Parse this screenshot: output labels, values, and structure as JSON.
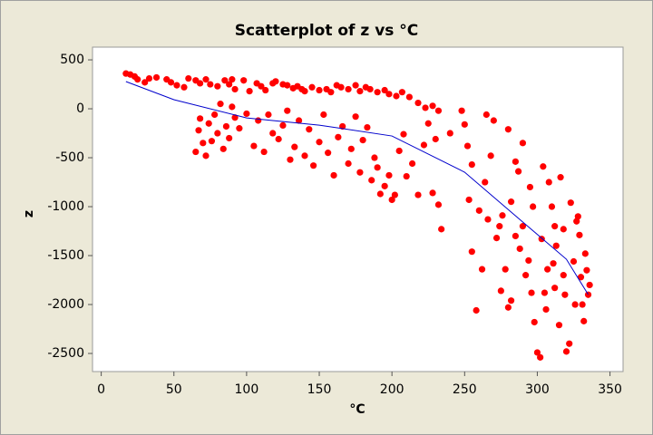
{
  "chart_data": {
    "type": "scatter",
    "title": "Scatterplot of z vs °C",
    "x_label": "°C",
    "y_label": "z",
    "xlim": [
      -6,
      359
    ],
    "ylim": [
      -2685,
      630
    ],
    "xticks": [
      0,
      50,
      100,
      150,
      200,
      250,
      300,
      350
    ],
    "yticks": [
      500,
      0,
      -500,
      -1000,
      -1500,
      -2000,
      -2500
    ],
    "grid": false,
    "series": [
      {
        "color": "#ff0000",
        "x": [
          17,
          20,
          23,
          25,
          30,
          33,
          38,
          45,
          48,
          52,
          57,
          60,
          65,
          68,
          72,
          75,
          80,
          85,
          88,
          90,
          92,
          98,
          102,
          107,
          110,
          113,
          118,
          120,
          125,
          128,
          132,
          135,
          138,
          140,
          145,
          150,
          155,
          158,
          162,
          165,
          170,
          175,
          178,
          182,
          185,
          190,
          195,
          198,
          203,
          207,
          212,
          218,
          223,
          228,
          232,
          65,
          67,
          68,
          70,
          72,
          74,
          76,
          78,
          80,
          82,
          84,
          86,
          88,
          90,
          92,
          95,
          100,
          105,
          108,
          112,
          115,
          118,
          122,
          125,
          128,
          130,
          133,
          136,
          140,
          143,
          146,
          150,
          153,
          156,
          160,
          163,
          166,
          170,
          172,
          175,
          178,
          180,
          183,
          186,
          188,
          190,
          192,
          195,
          198,
          200,
          202,
          205,
          208,
          210,
          214,
          218,
          222,
          225,
          228,
          232,
          234,
          230,
          240,
          248,
          250,
          252,
          255,
          253,
          255,
          258,
          260,
          262,
          264,
          266,
          265,
          268,
          270,
          272,
          274,
          275,
          278,
          280,
          282,
          276,
          280,
          282,
          285,
          287,
          288,
          290,
          292,
          294,
          295,
          297,
          298,
          300,
          302,
          303,
          305,
          306,
          304,
          307,
          308,
          310,
          311,
          312,
          313,
          315,
          316,
          318,
          319,
          320,
          322,
          323,
          325,
          327,
          329,
          330,
          331,
          333,
          334,
          335,
          332,
          336,
          326,
          328,
          290,
          285,
          296,
          312,
          318
        ],
        "values": [
          360,
          350,
          330,
          300,
          270,
          310,
          320,
          300,
          270,
          240,
          220,
          310,
          290,
          260,
          300,
          250,
          230,
          290,
          250,
          300,
          200,
          290,
          180,
          260,
          230,
          190,
          260,
          280,
          250,
          240,
          210,
          230,
          200,
          180,
          220,
          190,
          200,
          170,
          240,
          220,
          200,
          240,
          180,
          220,
          200,
          170,
          190,
          150,
          130,
          170,
          120,
          60,
          10,
          30,
          -20,
          -440,
          -220,
          -100,
          -350,
          -480,
          -150,
          -330,
          -60,
          -250,
          50,
          -410,
          -180,
          -300,
          20,
          -90,
          -200,
          -50,
          -380,
          -120,
          -440,
          -60,
          -250,
          -310,
          -170,
          -20,
          -520,
          -390,
          -120,
          -480,
          -210,
          -580,
          -340,
          -60,
          -450,
          -680,
          -290,
          -180,
          -560,
          -410,
          -80,
          -650,
          -320,
          -190,
          -730,
          -500,
          -600,
          -870,
          -790,
          -680,
          -930,
          -880,
          -430,
          -260,
          -690,
          -560,
          -880,
          -370,
          -150,
          -860,
          -980,
          -1230,
          -310,
          -250,
          -20,
          -160,
          -380,
          -570,
          -930,
          -1460,
          -2060,
          -1040,
          -1640,
          -750,
          -1130,
          -60,
          -480,
          -120,
          -1320,
          -1200,
          -1860,
          -1640,
          -2030,
          -1960,
          -1090,
          -210,
          -950,
          -540,
          -640,
          -1430,
          -350,
          -1700,
          -1550,
          -800,
          -1000,
          -2180,
          -2490,
          -2540,
          -1330,
          -1880,
          -2050,
          -590,
          -1640,
          -750,
          -1000,
          -1580,
          -1830,
          -1400,
          -2210,
          -700,
          -1230,
          -1900,
          -2480,
          -2400,
          -960,
          -1560,
          -1150,
          -1290,
          -1720,
          -2000,
          -1480,
          -1650,
          -1900,
          -2170,
          -1800,
          -2000,
          -1100,
          -1200,
          -1300,
          -1880,
          -1200,
          -1700
        ]
      }
    ],
    "fit_line": {
      "color": "#0000cc",
      "x": [
        17,
        50,
        100,
        150,
        200,
        250,
        290,
        320,
        335
      ],
      "values": [
        278,
        93,
        -93,
        -167,
        -278,
        -648,
        -1157,
        -1537,
        -1898
      ]
    }
  }
}
